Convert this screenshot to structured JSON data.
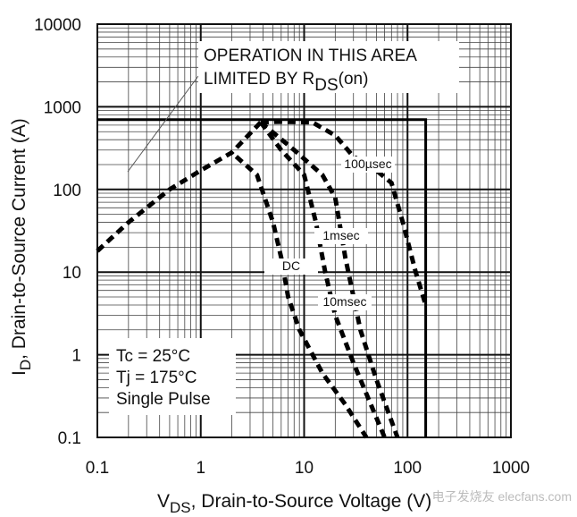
{
  "chart_data": {
    "type": "line",
    "x_label": [
      "V",
      "DS",
      ", Drain-to-Source Voltage (V)"
    ],
    "y_label": [
      "I",
      "D",
      ",  Drain-to-Source Current (A)"
    ],
    "xlim": [
      0.1,
      1000
    ],
    "ylim": [
      0.1,
      10000
    ],
    "log_x": true,
    "log_y": true,
    "grid": true,
    "xticks": [
      0.1,
      1,
      10,
      100,
      1000
    ],
    "yticks": [
      0.1,
      1,
      10,
      100,
      1000,
      10000
    ],
    "color": "#000000",
    "rds_limit_line": {
      "x": [
        0.1,
        0.2,
        0.5,
        1,
        2,
        3.8
      ],
      "values": [
        18,
        40,
        100,
        170,
        280,
        650
      ]
    },
    "limit_box": {
      "x": [
        0.1,
        150,
        150
      ],
      "values": [
        700,
        700,
        0.1
      ]
    },
    "series": [
      {
        "name": "100µsec",
        "x": [
          3.8,
          6,
          12,
          20,
          30,
          50,
          70,
          90,
          120,
          150
        ],
        "values": [
          650,
          660,
          650,
          450,
          250,
          170,
          120,
          40,
          10,
          4
        ]
      },
      {
        "name": "1msec",
        "x": [
          3.8,
          8,
          15,
          20,
          25,
          35,
          50,
          80
        ],
        "values": [
          650,
          300,
          150,
          80,
          15,
          2,
          0.5,
          0.1
        ]
      },
      {
        "name": "10msec",
        "x": [
          3.8,
          6,
          10,
          13,
          16,
          20,
          30,
          60
        ],
        "values": [
          650,
          300,
          150,
          40,
          10,
          3,
          0.8,
          0.1
        ]
      },
      {
        "name": "DC",
        "x": [
          2.2,
          3.5,
          5,
          6,
          7,
          9,
          15,
          25,
          40
        ],
        "values": [
          250,
          150,
          40,
          15,
          5,
          2,
          0.6,
          0.25,
          0.1
        ]
      }
    ],
    "annotations": {
      "line1": "OPERATION IN THIS AREA",
      "line2": "LIMITED BY R",
      "sub": "DS",
      "tail": "(on)"
    },
    "conditions": [
      "Tc = 25°C",
      "Tj = 175°C",
      "Single Pulse"
    ],
    "watermark": "电子发烧友 elecfans.com"
  }
}
